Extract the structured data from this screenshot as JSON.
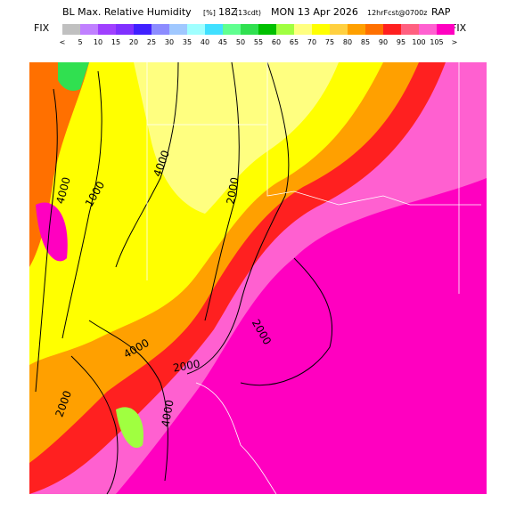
{
  "header": {
    "title": "BL Max. Relative Humidity",
    "units": "[%]",
    "time": "18Z",
    "local": "(13cdt)",
    "date": "MON 13 Apr 2026",
    "forecast": "12hrFcst@0700z",
    "model": "RAP"
  },
  "legend": {
    "left": "FIX",
    "right": "FIX",
    "labels": [
      "<",
      "5",
      "10",
      "15",
      "20",
      "25",
      "30",
      "35",
      "40",
      "45",
      "50",
      "55",
      "60",
      "65",
      "70",
      "75",
      "80",
      "85",
      "90",
      "95",
      "100",
      "105",
      ">"
    ],
    "colors": [
      "#c0c0c0",
      "#c080ff",
      "#a040ff",
      "#8030ff",
      "#4020ff",
      "#8c8cff",
      "#a0c8ff",
      "#a0ffff",
      "#40e0ff",
      "#60ff90",
      "#30e050",
      "#00c000",
      "#a0ff40",
      "#ffff80",
      "#ffff00",
      "#ffd040",
      "#ffa000",
      "#ff7000",
      "#ff2020",
      "#ff6080",
      "#ff60d0",
      "#ff00c0"
    ]
  },
  "map": {
    "contour_labels": [
      "4000",
      "4000",
      "2000",
      "2000",
      "2000",
      "4000",
      "1000",
      "2000",
      "4000"
    ]
  }
}
